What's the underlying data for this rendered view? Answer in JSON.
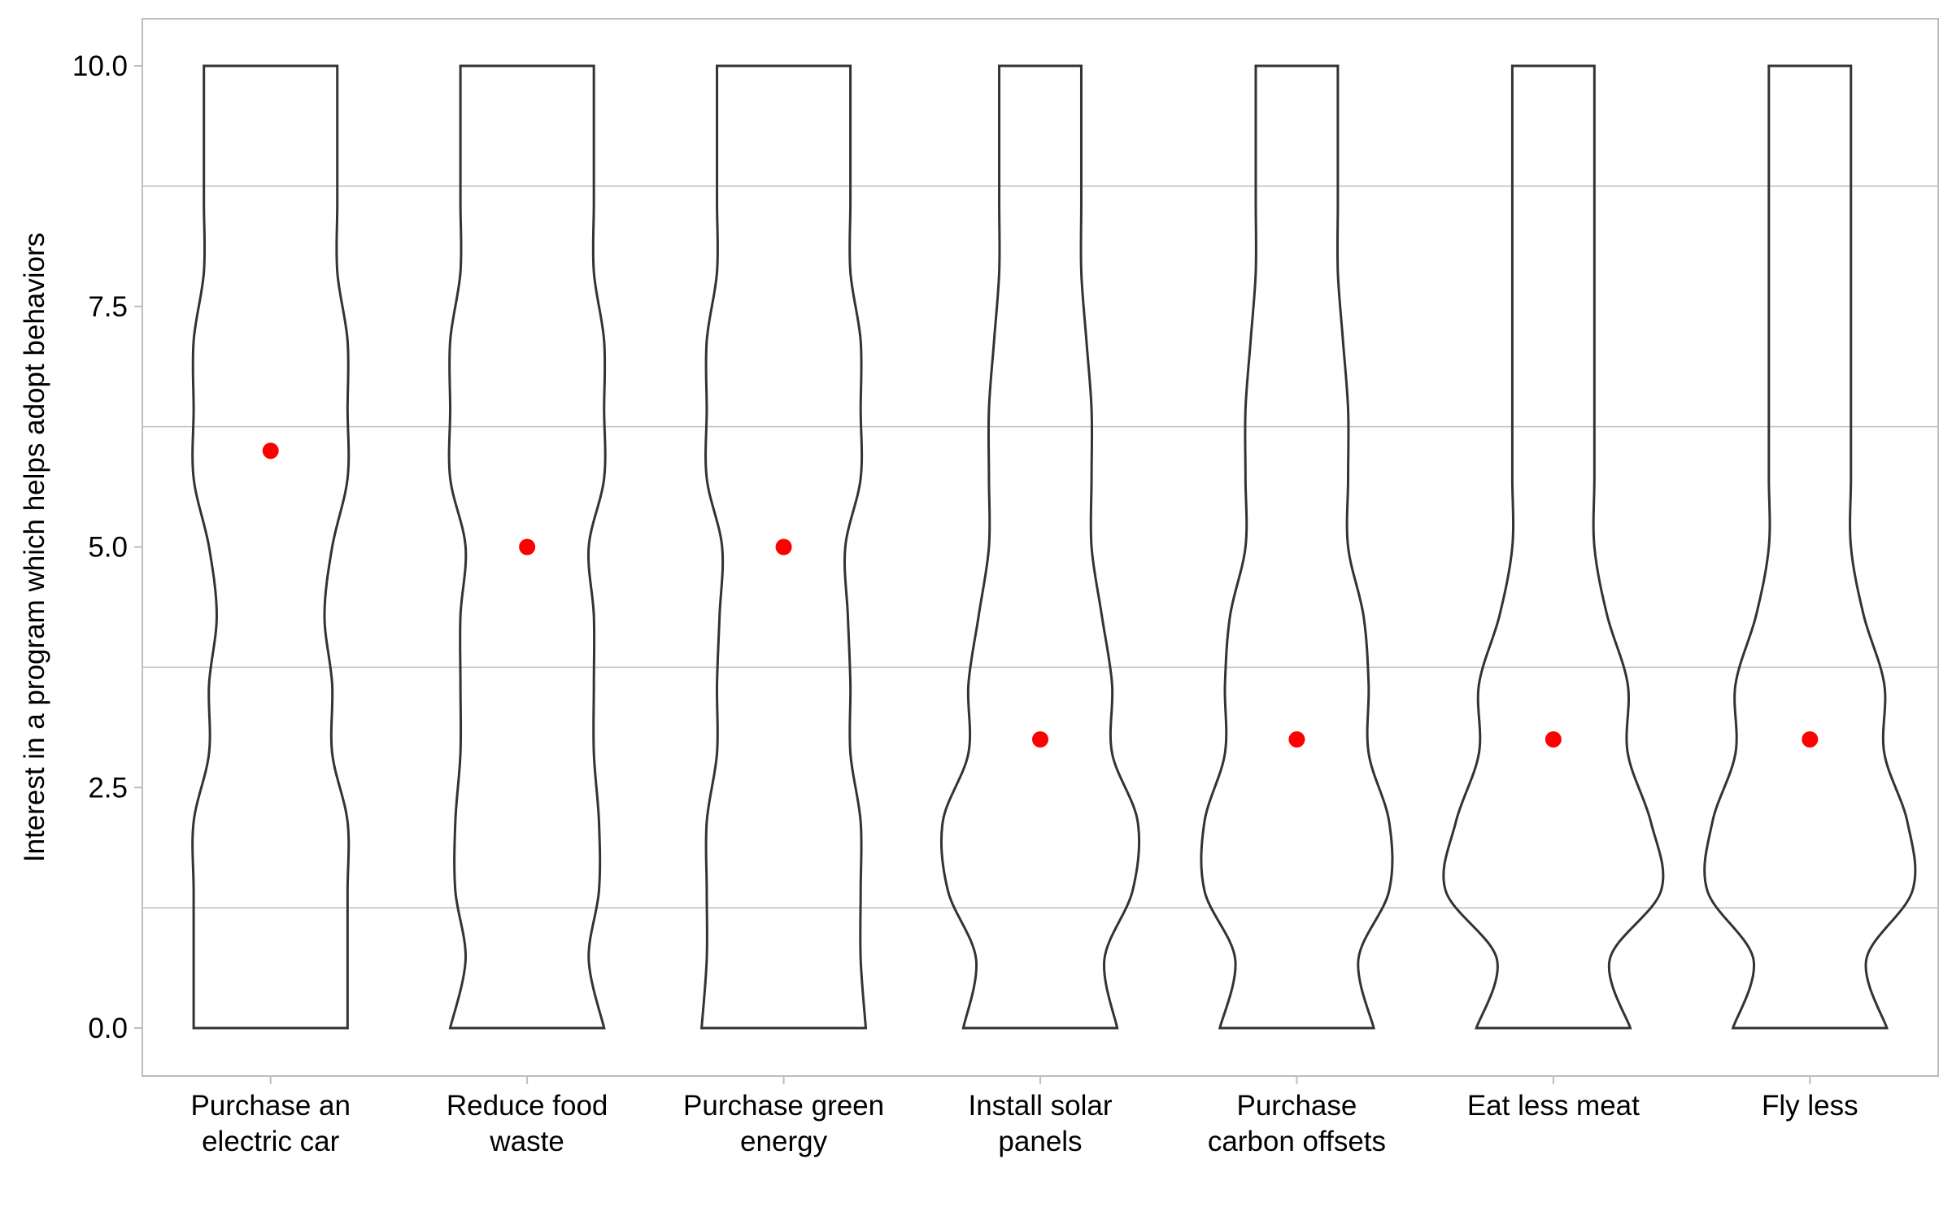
{
  "chart_data": {
    "type": "violin",
    "title": "",
    "xlabel": "",
    "ylabel": "Interest in a program which helps adopt behaviors",
    "ylim": [
      0,
      10
    ],
    "yticks": [
      "0.0",
      "2.5",
      "5.0",
      "7.5",
      "10.0"
    ],
    "grid": true,
    "categories": [
      [
        "Purchase an",
        "electric car"
      ],
      [
        "Reduce food",
        "waste"
      ],
      [
        "Purchase green",
        "energy"
      ],
      [
        "Install solar",
        "panels"
      ],
      [
        "Purchase",
        "carbon offsets"
      ],
      [
        "Eat less meat"
      ],
      [
        "Fly less"
      ]
    ],
    "medians": [
      6,
      5,
      5,
      3,
      3,
      3,
      3
    ],
    "median_color": "#ff0000",
    "outline_color": "#333333",
    "violin_half_widths": [
      [
        0.3,
        0.3,
        0.32,
        0.3,
        0.3,
        0.3,
        0.3
      ],
      [
        0.3,
        0.24,
        0.3,
        0.25,
        0.24,
        0.22,
        0.22
      ],
      [
        0.3,
        0.28,
        0.3,
        0.36,
        0.36,
        0.42,
        0.4
      ],
      [
        0.3,
        0.28,
        0.3,
        0.38,
        0.36,
        0.38,
        0.38
      ],
      [
        0.24,
        0.26,
        0.26,
        0.28,
        0.28,
        0.29,
        0.29
      ],
      [
        0.24,
        0.26,
        0.26,
        0.28,
        0.28,
        0.29,
        0.29
      ],
      [
        0.21,
        0.26,
        0.25,
        0.24,
        0.26,
        0.21,
        0.21
      ],
      [
        0.24,
        0.24,
        0.24,
        0.2,
        0.2,
        0.16,
        0.16
      ],
      [
        0.3,
        0.3,
        0.3,
        0.2,
        0.2,
        0.16,
        0.16
      ],
      [
        0.3,
        0.3,
        0.3,
        0.2,
        0.2,
        0.16,
        0.16
      ],
      [
        0.3,
        0.3,
        0.3,
        0.18,
        0.18,
        0.16,
        0.16
      ],
      [
        0.26,
        0.26,
        0.26,
        0.16,
        0.16,
        0.16,
        0.16
      ],
      [
        0.26,
        0.26,
        0.26,
        0.16,
        0.16,
        0.16,
        0.16
      ],
      [
        0.26,
        0.26,
        0.26,
        0.16,
        0.16,
        0.16,
        0.16
      ],
      [
        0.26,
        0.26,
        0.26,
        0.16,
        0.16,
        0.16,
        0.16
      ]
    ]
  }
}
